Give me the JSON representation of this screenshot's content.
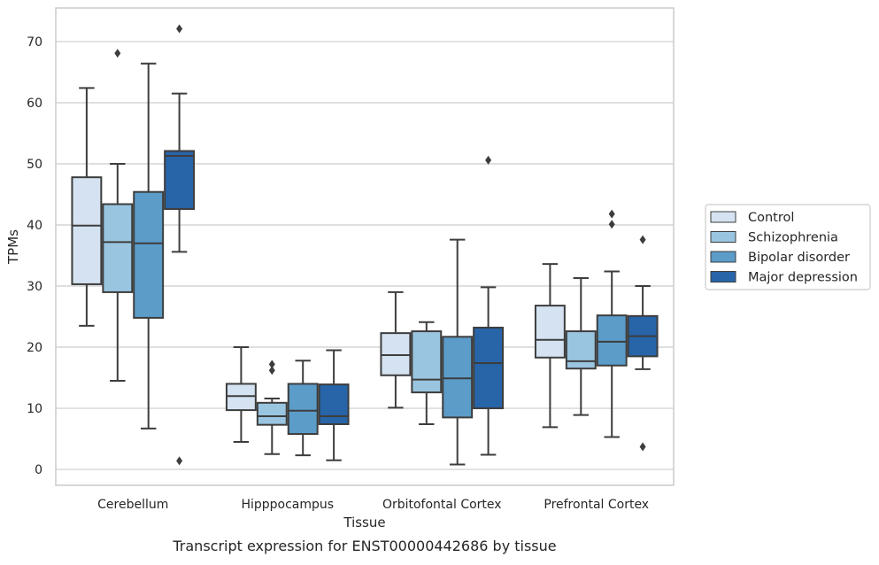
{
  "chart_data": {
    "type": "boxplot",
    "caption": "Transcript expression for ENST00000442686 by tissue",
    "xlabel": "Tissue",
    "ylabel": "TPMs",
    "ylim": [
      -2.6,
      75.5
    ],
    "yticks": [
      0,
      10,
      20,
      30,
      40,
      50,
      60,
      70
    ],
    "grid": "horizontal",
    "legend_position": "right",
    "categories": [
      "Cerebellum",
      "Hipppocampus",
      "Orbitofontal Cortex",
      "Prefrontal Cortex"
    ],
    "series": [
      {
        "name": "Control",
        "color": "#d4e2f1",
        "boxes": [
          {
            "whisker_low": 23.5,
            "q1": 30.3,
            "median": 39.9,
            "q3": 47.8,
            "whisker_high": 62.4,
            "outliers": []
          },
          {
            "whisker_low": 4.5,
            "q1": 9.7,
            "median": 12.0,
            "q3": 14.0,
            "whisker_high": 20.0,
            "outliers": []
          },
          {
            "whisker_low": 10.1,
            "q1": 15.4,
            "median": 18.7,
            "q3": 22.3,
            "whisker_high": 29.0,
            "outliers": []
          },
          {
            "whisker_low": 6.9,
            "q1": 18.3,
            "median": 21.2,
            "q3": 26.8,
            "whisker_high": 33.6,
            "outliers": []
          }
        ]
      },
      {
        "name": "Schizophrenia",
        "color": "#9ac5e0",
        "boxes": [
          {
            "whisker_low": 14.5,
            "q1": 29.0,
            "median": 37.2,
            "q3": 43.4,
            "whisker_high": 50.0,
            "outliers": [
              68.1
            ]
          },
          {
            "whisker_low": 2.5,
            "q1": 7.3,
            "median": 8.7,
            "q3": 10.9,
            "whisker_high": 11.6,
            "outliers": [
              17.2,
              16.2
            ]
          },
          {
            "whisker_low": 7.4,
            "q1": 12.6,
            "median": 14.7,
            "q3": 22.6,
            "whisker_high": 24.1,
            "outliers": []
          },
          {
            "whisker_low": 8.9,
            "q1": 16.5,
            "median": 17.7,
            "q3": 22.6,
            "whisker_high": 31.3,
            "outliers": []
          }
        ]
      },
      {
        "name": "Bipolar disorder",
        "color": "#5b9cc9",
        "boxes": [
          {
            "whisker_low": 6.7,
            "q1": 24.8,
            "median": 37.0,
            "q3": 45.4,
            "whisker_high": 66.4,
            "outliers": []
          },
          {
            "whisker_low": 2.3,
            "q1": 5.8,
            "median": 9.6,
            "q3": 14.0,
            "whisker_high": 17.8,
            "outliers": []
          },
          {
            "whisker_low": 0.8,
            "q1": 8.5,
            "median": 14.9,
            "q3": 21.7,
            "whisker_high": 37.6,
            "outliers": []
          },
          {
            "whisker_low": 5.3,
            "q1": 17.0,
            "median": 20.9,
            "q3": 25.2,
            "whisker_high": 32.4,
            "outliers": [
              41.8,
              40.1
            ]
          }
        ]
      },
      {
        "name": "Major depression",
        "color": "#2764a8",
        "boxes": [
          {
            "whisker_low": 35.6,
            "q1": 42.6,
            "median": 51.3,
            "q3": 52.1,
            "whisker_high": 61.5,
            "outliers": [
              72.1,
              1.4
            ]
          },
          {
            "whisker_low": 1.5,
            "q1": 7.4,
            "median": 8.7,
            "q3": 13.9,
            "whisker_high": 19.5,
            "outliers": []
          },
          {
            "whisker_low": 2.4,
            "q1": 10.0,
            "median": 17.4,
            "q3": 23.2,
            "whisker_high": 29.8,
            "outliers": [
              50.6
            ]
          },
          {
            "whisker_low": 16.4,
            "q1": 18.5,
            "median": 21.8,
            "q3": 25.1,
            "whisker_high": 30.0,
            "outliers": [
              37.6,
              3.7
            ]
          }
        ]
      }
    ]
  },
  "colors": {
    "box_edge": "#3d3d3d",
    "grid": "#cccccc",
    "axes_border": "#cccccc",
    "text": "#262626"
  }
}
